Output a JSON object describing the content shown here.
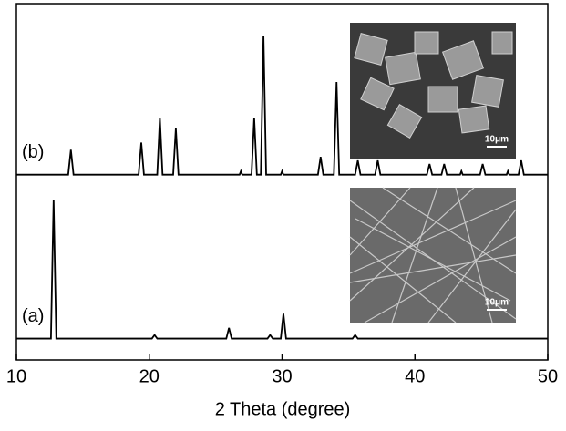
{
  "chart_data": {
    "type": "line",
    "xlabel": "2 Theta (degree)",
    "xlim": [
      10,
      50
    ],
    "xticks": [
      10,
      20,
      30,
      40,
      50
    ],
    "ylim": [
      0,
      100
    ],
    "series": [
      {
        "name": "(b)",
        "color": "#000000",
        "x": [
          10,
          13.9,
          14.1,
          14.3,
          19.2,
          19.4,
          19.6,
          20.6,
          20.8,
          21.0,
          21.8,
          22.0,
          22.2,
          26.8,
          26.9,
          27.0,
          27.7,
          27.9,
          28.1,
          28.4,
          28.6,
          28.8,
          29.9,
          30.0,
          30.1,
          32.7,
          32.9,
          33.1,
          33.9,
          34.1,
          34.3,
          35.5,
          35.7,
          35.9,
          37.0,
          37.2,
          37.4,
          40.9,
          41.1,
          41.3,
          42.0,
          42.2,
          42.4,
          43.4,
          43.5,
          43.6,
          44.9,
          45.1,
          45.3,
          46.9,
          47.0,
          47.1,
          47.8,
          48.0,
          48.2,
          50
        ],
        "values": [
          52,
          52,
          59,
          52,
          52,
          61,
          52,
          52,
          68,
          52,
          52,
          65,
          52,
          52,
          53,
          52,
          52,
          68,
          52,
          52,
          91,
          52,
          52,
          53,
          52,
          52,
          57,
          52,
          52,
          78,
          52,
          52,
          56,
          52,
          52,
          56,
          52,
          52,
          55,
          52,
          52,
          55,
          52,
          52,
          53,
          52,
          52,
          55,
          52,
          52,
          53,
          52,
          52,
          56,
          52,
          52
        ]
      },
      {
        "name": "(a)",
        "color": "#000000",
        "x": [
          10,
          12.6,
          12.8,
          13.0,
          20.2,
          20.4,
          20.6,
          25.8,
          26.0,
          26.2,
          28.9,
          29.1,
          29.3,
          29.9,
          30.1,
          30.3,
          35.3,
          35.5,
          35.7,
          50
        ],
        "values": [
          6,
          6,
          45,
          6,
          6,
          7,
          6,
          6,
          9,
          6,
          6,
          7,
          6,
          6,
          13,
          6,
          6,
          7,
          6,
          6
        ]
      }
    ],
    "insets": [
      {
        "scale_label": "10μm"
      },
      {
        "scale_label": "10μm"
      }
    ]
  }
}
